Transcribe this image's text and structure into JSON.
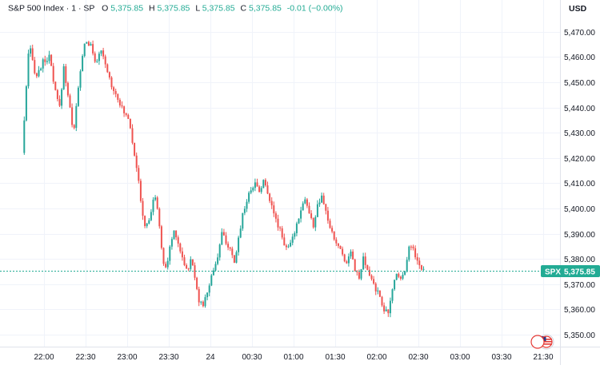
{
  "header": {
    "symbol": "S&P 500 Index · 1 · SP",
    "open_label": "O",
    "open": "5,375.85",
    "high_label": "H",
    "high": "5,375.85",
    "low_label": "L",
    "low": "5,375.85",
    "close_label": "C",
    "close": "5,375.85",
    "change": "-0.01 (−0.00%)"
  },
  "price_axis": {
    "currency": "USD"
  },
  "last_price_tag": {
    "symbol": "SPX",
    "value": "5,375.85"
  },
  "colors": {
    "up": "#26a69a",
    "down": "#ef5350",
    "grid": "#f0f3fa",
    "text": "#131722",
    "tag": "#22ab94"
  },
  "chart_data": {
    "type": "candlestick",
    "interval": "1 minute",
    "ylim": [
      5345,
      5478
    ],
    "y_ticks": [
      "5,350.00",
      "5,360.00",
      "5,370.00",
      "5,380.00",
      "5,390.00",
      "5,400.00",
      "5,410.00",
      "5,420.00",
      "5,430.00",
      "5,440.00",
      "5,450.00",
      "5,460.00",
      "5,470.00"
    ],
    "x_ticks": [
      "22:00",
      "22:30",
      "23:00",
      "23:30",
      "24",
      "00:30",
      "01:00",
      "01:30",
      "02:00",
      "02:30",
      "03:00",
      "03:30",
      "21:30"
    ],
    "last_price": 5375.85,
    "grid": true,
    "path": [
      [
        "21:45",
        5422
      ],
      [
        "21:50",
        5465
      ],
      [
        "21:55",
        5452
      ],
      [
        "22:00",
        5458
      ],
      [
        "22:05",
        5460
      ],
      [
        "22:08",
        5448
      ],
      [
        "22:12",
        5440
      ],
      [
        "22:15",
        5456
      ],
      [
        "22:18",
        5445
      ],
      [
        "22:22",
        5430
      ],
      [
        "22:26",
        5450
      ],
      [
        "22:30",
        5466
      ],
      [
        "22:34",
        5465
      ],
      [
        "22:38",
        5458
      ],
      [
        "22:42",
        5462
      ],
      [
        "22:46",
        5455
      ],
      [
        "22:50",
        5448
      ],
      [
        "22:54",
        5444
      ],
      [
        "22:58",
        5438
      ],
      [
        "23:02",
        5436
      ],
      [
        "23:05",
        5425
      ],
      [
        "23:08",
        5415
      ],
      [
        "23:11",
        5400
      ],
      [
        "23:14",
        5392
      ],
      [
        "23:17",
        5396
      ],
      [
        "23:20",
        5405
      ],
      [
        "23:23",
        5400
      ],
      [
        "23:26",
        5380
      ],
      [
        "23:29",
        5376
      ],
      [
        "23:32",
        5386
      ],
      [
        "23:35",
        5392
      ],
      [
        "23:38",
        5385
      ],
      [
        "23:41",
        5380
      ],
      [
        "23:44",
        5375
      ],
      [
        "23:47",
        5380
      ],
      [
        "23:50",
        5372
      ],
      [
        "23:53",
        5362
      ],
      [
        "23:56",
        5362
      ],
      [
        "00:00",
        5370
      ],
      [
        "00:03",
        5376
      ],
      [
        "00:06",
        5381
      ],
      [
        "00:09",
        5390
      ],
      [
        "00:12",
        5387
      ],
      [
        "00:15",
        5383
      ],
      [
        "00:18",
        5378
      ],
      [
        "00:21",
        5388
      ],
      [
        "00:24",
        5398
      ],
      [
        "00:27",
        5403
      ],
      [
        "00:30",
        5408
      ],
      [
        "00:33",
        5410
      ],
      [
        "00:36",
        5407
      ],
      [
        "00:39",
        5411
      ],
      [
        "00:42",
        5406
      ],
      [
        "00:45",
        5402
      ],
      [
        "00:48",
        5395
      ],
      [
        "00:51",
        5392
      ],
      [
        "00:54",
        5386
      ],
      [
        "00:57",
        5384
      ],
      [
        "01:00",
        5388
      ],
      [
        "01:03",
        5394
      ],
      [
        "01:06",
        5400
      ],
      [
        "01:09",
        5404
      ],
      [
        "01:12",
        5398
      ],
      [
        "01:15",
        5393
      ],
      [
        "01:18",
        5401
      ],
      [
        "01:21",
        5404
      ],
      [
        "01:24",
        5399
      ],
      [
        "01:27",
        5392
      ],
      [
        "01:30",
        5388
      ],
      [
        "01:33",
        5385
      ],
      [
        "01:36",
        5382
      ],
      [
        "01:39",
        5378
      ],
      [
        "01:42",
        5384
      ],
      [
        "01:45",
        5376
      ],
      [
        "01:48",
        5372
      ],
      [
        "01:51",
        5380
      ],
      [
        "01:54",
        5375
      ],
      [
        "01:57",
        5372
      ],
      [
        "02:00",
        5368
      ],
      [
        "02:03",
        5365
      ],
      [
        "02:06",
        5360
      ],
      [
        "02:09",
        5358
      ],
      [
        "02:12",
        5368
      ],
      [
        "02:15",
        5375
      ],
      [
        "02:18",
        5372
      ],
      [
        "02:21",
        5376
      ],
      [
        "02:24",
        5385
      ],
      [
        "02:27",
        5384
      ],
      [
        "02:30",
        5379
      ],
      [
        "02:33",
        5375.85
      ]
    ]
  }
}
